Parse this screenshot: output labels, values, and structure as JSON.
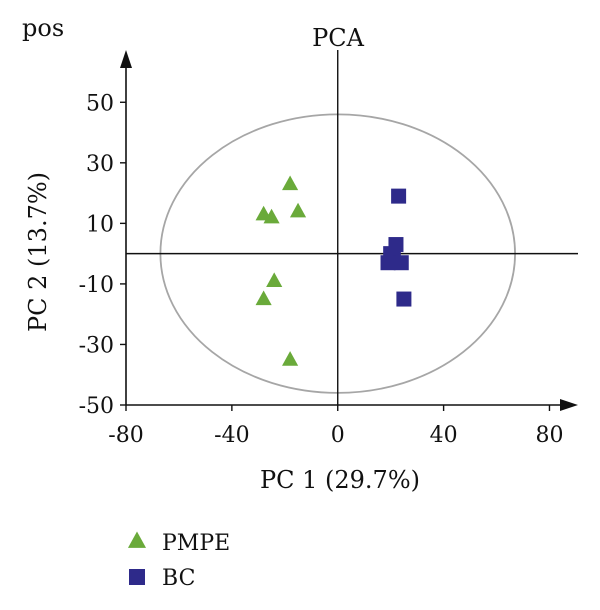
{
  "chart_data": {
    "type": "scatter",
    "corner_label": "pos",
    "title": "PCA",
    "xlabel": "PC 1 (29.7%)",
    "ylabel": "PC 2 (13.7%)",
    "xlim": [
      -80,
      87
    ],
    "ylim": [
      -50,
      60
    ],
    "xticks": [
      -80,
      -40,
      0,
      40,
      80
    ],
    "yticks": [
      50,
      30,
      10,
      -10,
      -30,
      -50
    ],
    "xtick_labels": [
      "-80",
      "-40",
      "0",
      "40",
      "80"
    ],
    "ytick_labels": [
      "50",
      "30",
      "10",
      "-10",
      "-30",
      "-50"
    ],
    "grid": false,
    "legend_position": "bottom-left",
    "ellipse": {
      "center": [
        0,
        0
      ],
      "rx": 67,
      "ry": 46,
      "color": "#a6a6a6"
    },
    "series": [
      {
        "name": "PMPE",
        "marker": "triangle",
        "color": "#6aaa3a",
        "points": [
          {
            "x": -18,
            "y": 23
          },
          {
            "x": -28,
            "y": 13
          },
          {
            "x": -25,
            "y": 12
          },
          {
            "x": -15,
            "y": 14
          },
          {
            "x": -24,
            "y": -9
          },
          {
            "x": -28,
            "y": -15
          },
          {
            "x": -18,
            "y": -35
          }
        ]
      },
      {
        "name": "BC",
        "marker": "square",
        "color": "#2e2a8a",
        "points": [
          {
            "x": 23,
            "y": 19
          },
          {
            "x": 22,
            "y": 3
          },
          {
            "x": 20,
            "y": 0
          },
          {
            "x": 21,
            "y": -1
          },
          {
            "x": 24,
            "y": -3
          },
          {
            "x": 19,
            "y": -3
          },
          {
            "x": 25,
            "y": -15
          }
        ]
      }
    ]
  }
}
